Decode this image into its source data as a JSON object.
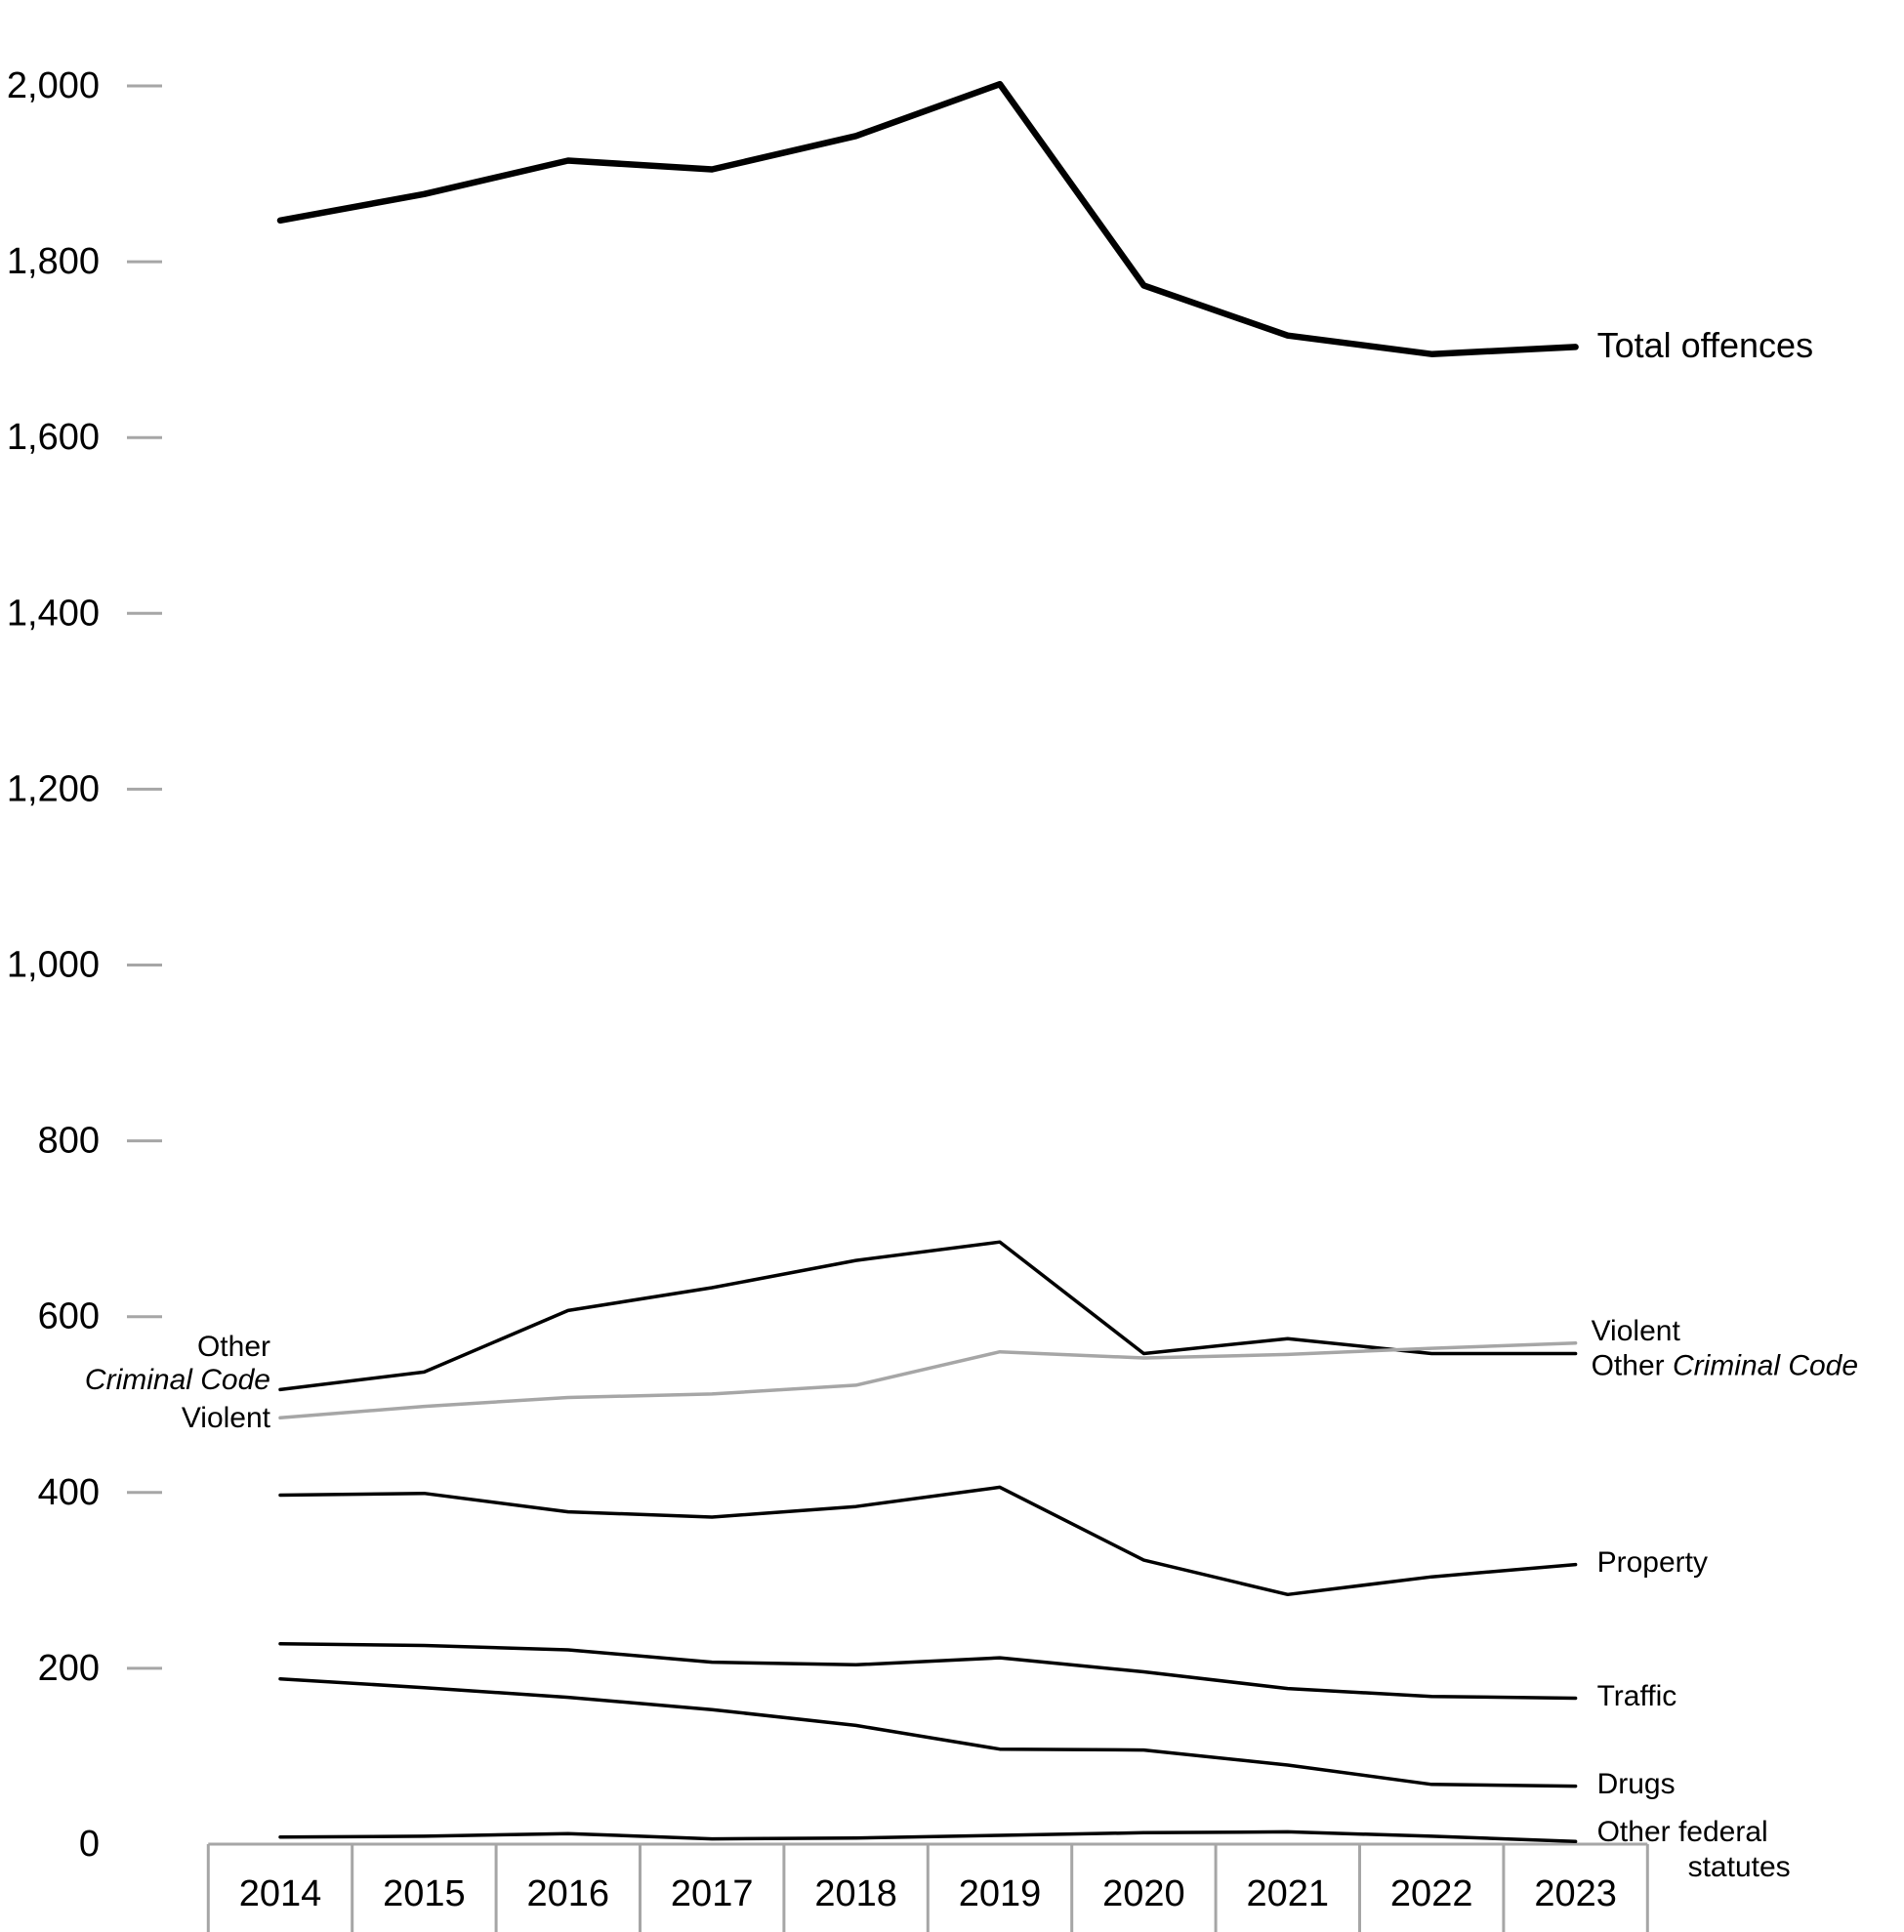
{
  "chart_data": {
    "type": "line",
    "title": "",
    "xlabel": "",
    "ylabel": "",
    "categories": [
      "2014",
      "2015",
      "2016",
      "2017",
      "2018",
      "2019",
      "2020",
      "2021",
      "2022",
      "2023"
    ],
    "ylim": [
      0,
      2000
    ],
    "yticks": [
      0,
      200,
      400,
      600,
      800,
      1000,
      1200,
      1400,
      1600,
      1800,
      2000
    ],
    "ytick_labels": [
      "0",
      "200",
      "400",
      "600",
      "800",
      "1,000",
      "1,200",
      "1,400",
      "1,600",
      "1,800",
      "2,000"
    ],
    "grid": false,
    "legend": "inline labels at line ends",
    "series": [
      {
        "name": "Total offences",
        "key": "total",
        "values": [
          1847,
          1877,
          1915,
          1905,
          1943,
          2002,
          1773,
          1716,
          1695,
          1703
        ],
        "color": "#000000",
        "end_label": "Total offences"
      },
      {
        "name": "Other Criminal Code",
        "key": "other-criminal-code",
        "values": [
          517,
          537,
          607,
          633,
          664,
          685,
          558,
          575,
          558,
          558
        ],
        "color": "#000000",
        "start_label": [
          "Other",
          "Criminal Code"
        ],
        "end_label_plain": "Other ",
        "end_label_italic": "Criminal Code"
      },
      {
        "name": "Violent",
        "key": "violent",
        "values": [
          485,
          498,
          508,
          512,
          522,
          560,
          553,
          557,
          564,
          570
        ],
        "color": "#a6a6a6",
        "start_label": "Violent",
        "end_label": "Violent"
      },
      {
        "name": "Property",
        "key": "property",
        "values": [
          397,
          399,
          378,
          372,
          384,
          406,
          323,
          284,
          304,
          318
        ],
        "color": "#000000",
        "end_label": "Property"
      },
      {
        "name": "Traffic",
        "key": "traffic",
        "values": [
          228,
          226,
          221,
          207,
          204,
          212,
          196,
          177,
          168,
          166
        ],
        "color": "#000000",
        "end_label": "Traffic"
      },
      {
        "name": "Drugs",
        "key": "drugs",
        "values": [
          188,
          178,
          167,
          153,
          135,
          108,
          107,
          90,
          68,
          66
        ],
        "color": "#000000",
        "end_label": "Drugs"
      },
      {
        "name": "Other federal statutes",
        "key": "other-federal-statutes",
        "values": [
          8,
          9,
          12,
          6,
          7,
          10,
          13,
          14,
          9,
          3
        ],
        "color": "#000000",
        "end_label": [
          "Other federal",
          "statutes"
        ]
      }
    ],
    "colors": {
      "axis": "#a6a6a6",
      "tick": "#a6a6a6",
      "text": "#000000"
    }
  }
}
